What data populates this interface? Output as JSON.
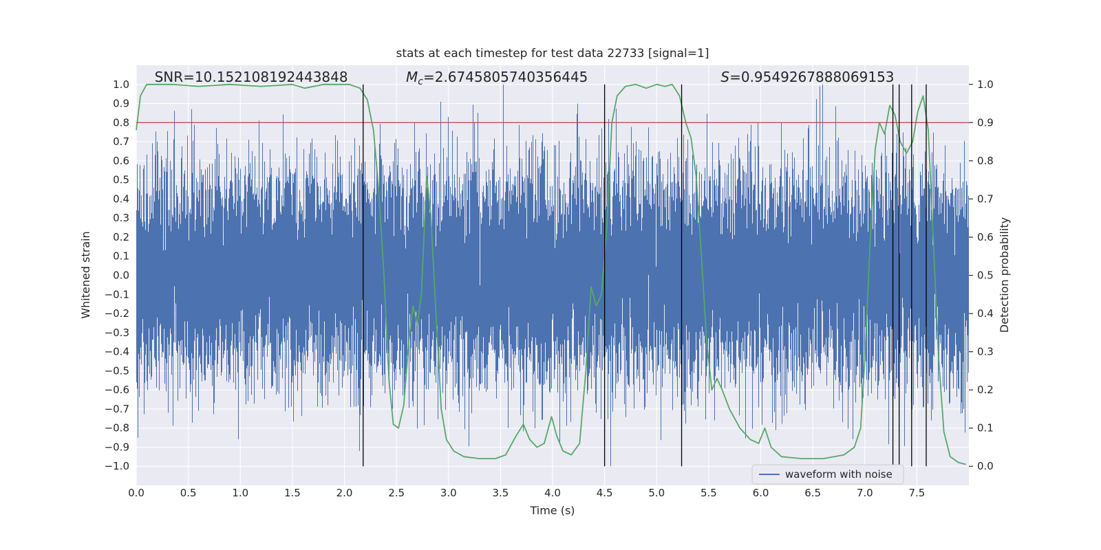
{
  "figure": {
    "background": "#ffffff"
  },
  "chart_data": {
    "type": "line",
    "title": "stats at each timestep for test data 22733 [signal=1]",
    "xlabel": "Time (s)",
    "ylabel_left": "Whitened strain",
    "ylabel_right": "Detection probability",
    "axes_background": "#eaeaf2",
    "grid_color": "#ffffff",
    "grid": true,
    "xlim": [
      0,
      8
    ],
    "ylim_left": [
      -1.1,
      1.1
    ],
    "ylim_right": [
      -0.05,
      1.05
    ],
    "x_ticks": [
      0.0,
      0.5,
      1.0,
      1.5,
      2.0,
      2.5,
      3.0,
      3.5,
      4.0,
      4.5,
      5.0,
      5.5,
      6.0,
      6.5,
      7.0,
      7.5
    ],
    "y_ticks_left": [
      1.0,
      0.9,
      0.8,
      0.7,
      0.6,
      0.5,
      0.4,
      0.3,
      0.2,
      0.1,
      0.0,
      -0.1,
      -0.2,
      -0.3,
      -0.4,
      -0.5,
      -0.6,
      -0.7,
      -0.8,
      -0.9,
      -1.0
    ],
    "y_ticks_right": [
      1.0,
      0.9,
      0.8,
      0.7,
      0.6,
      0.5,
      0.4,
      0.3,
      0.2,
      0.1,
      0.0
    ],
    "annotations": [
      {
        "head": "SNR",
        "italic": false,
        "sub": "",
        "rest": "=10.152108192443848",
        "x_frac": 0.022
      },
      {
        "head": "M",
        "italic": true,
        "sub": "c",
        "rest": "=2.6745805740356445",
        "x_frac": 0.324
      },
      {
        "head": "S",
        "italic": true,
        "sub": "",
        "rest": "=0.9549267888069153",
        "x_frac": 0.702
      }
    ],
    "threshold_line": {
      "probability": 0.9,
      "color": "#c44e52"
    },
    "event_vlines": {
      "color": "#000000",
      "span_strain": [
        -1.0,
        1.0
      ],
      "times": [
        2.18,
        4.5,
        5.24,
        7.27,
        7.33,
        7.45,
        7.59
      ]
    },
    "series": [
      {
        "name": "waveform with noise",
        "color": "#4c72b0",
        "axis": "left",
        "kind": "noise",
        "generator": {
          "seed": 22733,
          "sigma": 0.27,
          "samples_per_column": 13,
          "clip": [
            -1.0,
            1.0
          ]
        }
      },
      {
        "name": "detection probability",
        "color": "#55a868",
        "axis": "right",
        "kind": "line",
        "points": [
          [
            0.0,
            0.88
          ],
          [
            0.04,
            0.97
          ],
          [
            0.1,
            1.0
          ],
          [
            0.35,
            1.0
          ],
          [
            0.6,
            0.995
          ],
          [
            0.9,
            1.0
          ],
          [
            1.2,
            0.995
          ],
          [
            1.5,
            1.0
          ],
          [
            1.62,
            0.99
          ],
          [
            1.8,
            1.0
          ],
          [
            2.05,
            1.0
          ],
          [
            2.15,
            0.99
          ],
          [
            2.22,
            0.96
          ],
          [
            2.28,
            0.88
          ],
          [
            2.33,
            0.72
          ],
          [
            2.38,
            0.5
          ],
          [
            2.43,
            0.22
          ],
          [
            2.47,
            0.11
          ],
          [
            2.52,
            0.1
          ],
          [
            2.57,
            0.16
          ],
          [
            2.62,
            0.33
          ],
          [
            2.66,
            0.42
          ],
          [
            2.7,
            0.37
          ],
          [
            2.74,
            0.45
          ],
          [
            2.79,
            0.76
          ],
          [
            2.83,
            0.66
          ],
          [
            2.88,
            0.4
          ],
          [
            2.93,
            0.15
          ],
          [
            2.98,
            0.07
          ],
          [
            3.05,
            0.04
          ],
          [
            3.15,
            0.025
          ],
          [
            3.3,
            0.02
          ],
          [
            3.45,
            0.02
          ],
          [
            3.55,
            0.03
          ],
          [
            3.65,
            0.08
          ],
          [
            3.72,
            0.11
          ],
          [
            3.78,
            0.07
          ],
          [
            3.85,
            0.05
          ],
          [
            3.92,
            0.06
          ],
          [
            3.99,
            0.13
          ],
          [
            4.04,
            0.08
          ],
          [
            4.1,
            0.04
          ],
          [
            4.18,
            0.03
          ],
          [
            4.26,
            0.06
          ],
          [
            4.32,
            0.25
          ],
          [
            4.37,
            0.47
          ],
          [
            4.42,
            0.42
          ],
          [
            4.47,
            0.45
          ],
          [
            4.52,
            0.62
          ],
          [
            4.57,
            0.9
          ],
          [
            4.62,
            0.97
          ],
          [
            4.7,
            0.995
          ],
          [
            4.8,
            1.0
          ],
          [
            4.9,
            0.99
          ],
          [
            5.0,
            1.0
          ],
          [
            5.08,
            0.995
          ],
          [
            5.15,
            1.0
          ],
          [
            5.22,
            0.97
          ],
          [
            5.28,
            0.9
          ],
          [
            5.33,
            0.86
          ],
          [
            5.38,
            0.76
          ],
          [
            5.43,
            0.55
          ],
          [
            5.48,
            0.33
          ],
          [
            5.53,
            0.2
          ],
          [
            5.58,
            0.23
          ],
          [
            5.63,
            0.2
          ],
          [
            5.7,
            0.15
          ],
          [
            5.8,
            0.1
          ],
          [
            5.9,
            0.07
          ],
          [
            5.98,
            0.06
          ],
          [
            6.04,
            0.1
          ],
          [
            6.1,
            0.05
          ],
          [
            6.2,
            0.025
          ],
          [
            6.4,
            0.02
          ],
          [
            6.6,
            0.02
          ],
          [
            6.8,
            0.03
          ],
          [
            6.9,
            0.05
          ],
          [
            6.96,
            0.1
          ],
          [
            7.0,
            0.28
          ],
          [
            7.05,
            0.58
          ],
          [
            7.1,
            0.83
          ],
          [
            7.14,
            0.9
          ],
          [
            7.19,
            0.87
          ],
          [
            7.24,
            0.945
          ],
          [
            7.29,
            0.92
          ],
          [
            7.34,
            0.85
          ],
          [
            7.4,
            0.82
          ],
          [
            7.46,
            0.85
          ],
          [
            7.51,
            0.93
          ],
          [
            7.56,
            0.97
          ],
          [
            7.61,
            0.88
          ],
          [
            7.66,
            0.58
          ],
          [
            7.71,
            0.28
          ],
          [
            7.76,
            0.09
          ],
          [
            7.82,
            0.025
          ],
          [
            7.9,
            0.01
          ],
          [
            7.97,
            0.005
          ]
        ]
      }
    ],
    "legend": {
      "label": "waveform with noise",
      "position": "lower right"
    }
  }
}
